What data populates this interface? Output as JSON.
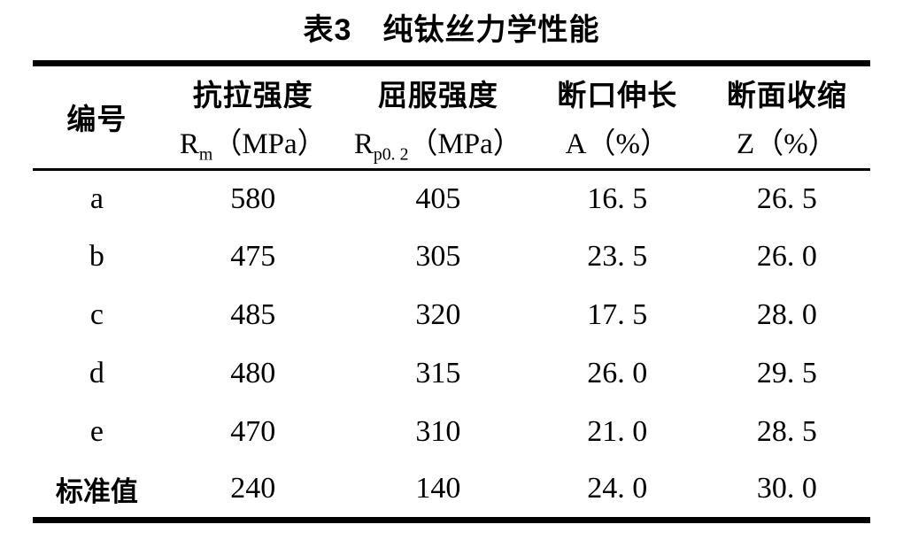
{
  "caption": "表3　纯钛丝力学性能",
  "table": {
    "corner_header": "编号",
    "columns": [
      {
        "title": "抗拉强度",
        "sym": "R",
        "sub": "m",
        "unit": "（MPa）"
      },
      {
        "title": "屈服强度",
        "sym": "R",
        "sub": "p0. 2",
        "unit": "（MPa）"
      },
      {
        "title": "断口伸长",
        "sym": "A",
        "sub": "",
        "unit": "（%）"
      },
      {
        "title": "断面收缩",
        "sym": "Z",
        "sub": "",
        "unit": "（%）"
      }
    ],
    "rows": [
      {
        "label": "a",
        "cells": [
          "580",
          "405",
          "16. 5",
          "26. 5"
        ]
      },
      {
        "label": "b",
        "cells": [
          "475",
          "305",
          "23. 5",
          "26. 0"
        ]
      },
      {
        "label": "c",
        "cells": [
          "485",
          "320",
          "17. 5",
          "28. 0"
        ]
      },
      {
        "label": "d",
        "cells": [
          "480",
          "315",
          "26. 0",
          "29. 5"
        ]
      },
      {
        "label": "e",
        "cells": [
          "470",
          "310",
          "21. 0",
          "28. 5"
        ]
      },
      {
        "label": "标准值",
        "cells": [
          "240",
          "140",
          "24. 0",
          "30. 0"
        ]
      }
    ]
  },
  "colors": {
    "text": "#000000",
    "background": "#ffffff",
    "rule": "#000000"
  }
}
